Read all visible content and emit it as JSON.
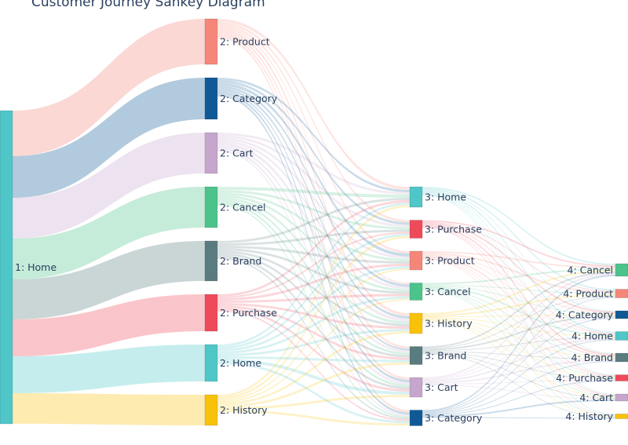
{
  "chart_data": {
    "type": "sankey",
    "title": "Customer Journey Sankey Diagram",
    "colors": {
      "Home": "#4fc6c8",
      "Product": "#f4877a",
      "Category": "#0f5a96",
      "Cart": "#c6a6cc",
      "Cancel": "#4cc38a",
      "Brand": "#5a7c80",
      "Purchase": "#ef4a5a",
      "History": "#f9c20a"
    },
    "columns": [
      {
        "step": 1,
        "nodes": [
          "Home"
        ],
        "labels": [
          "1: Home"
        ]
      },
      {
        "step": 2,
        "nodes": [
          "Product",
          "Category",
          "Cart",
          "Cancel",
          "Brand",
          "Purchase",
          "Home",
          "History"
        ],
        "labels": [
          "2: Product",
          "2: Category",
          "2: Cart",
          "2: Cancel",
          "2: Brand",
          "2: Purchase",
          "2: Home",
          "2: History"
        ]
      },
      {
        "step": 3,
        "nodes": [
          "Home",
          "Purchase",
          "Product",
          "Cancel",
          "History",
          "Brand",
          "Cart",
          "Category"
        ],
        "labels": [
          "3: Home",
          "3: Purchase",
          "3: Product",
          "3: Cancel",
          "3: History",
          "3: Brand",
          "3: Cart",
          "3: Category"
        ]
      },
      {
        "step": 4,
        "nodes": [
          "Cancel",
          "Product",
          "Category",
          "Home",
          "Brand",
          "Purchase",
          "Cart",
          "History"
        ],
        "labels": [
          "4: Cancel",
          "4: Product",
          "4: Category",
          "4: Home",
          "4: Brand",
          "4: Purchase",
          "4: Cart",
          "4: History"
        ]
      }
    ],
    "flows": [
      [
        [
          58,
          53,
          52,
          52,
          51,
          47,
          47,
          39
        ]
      ],
      [
        [
          4,
          3,
          3,
          2,
          4,
          3,
          3,
          3
        ],
        [
          3,
          3,
          4,
          3,
          3,
          2,
          3,
          3
        ],
        [
          3,
          3,
          3,
          3,
          4,
          3,
          3,
          2
        ],
        [
          4,
          3,
          3,
          3,
          3,
          3,
          3,
          2
        ],
        [
          3,
          3,
          3,
          3,
          3,
          3,
          3,
          2
        ],
        [
          3,
          2,
          3,
          3,
          3,
          3,
          3,
          2
        ],
        [
          3,
          3,
          3,
          3,
          3,
          3,
          4,
          3
        ],
        [
          3,
          3,
          2,
          2,
          3,
          3,
          3,
          3
        ]
      ],
      [
        [
          2,
          2,
          1,
          2,
          1,
          1,
          1,
          1
        ],
        [
          2,
          1,
          2,
          1,
          2,
          1,
          1,
          0
        ],
        [
          2,
          2,
          1,
          1,
          2,
          1,
          1,
          1
        ],
        [
          2,
          1,
          1,
          2,
          1,
          1,
          1,
          1
        ],
        [
          2,
          2,
          1,
          1,
          1,
          1,
          1,
          1
        ],
        [
          2,
          1,
          2,
          1,
          1,
          1,
          1,
          1
        ],
        [
          2,
          1,
          1,
          2,
          2,
          1,
          1,
          0
        ],
        [
          2,
          1,
          1,
          1,
          1,
          1,
          2,
          1
        ]
      ]
    ]
  }
}
